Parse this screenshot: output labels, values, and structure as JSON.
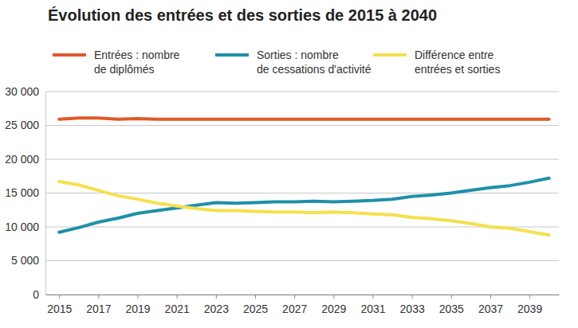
{
  "chart_data": {
    "type": "line",
    "title": "Évolution des entrées et des sorties de 2015 à 2040",
    "x": [
      2015,
      2016,
      2017,
      2018,
      2019,
      2020,
      2021,
      2022,
      2023,
      2024,
      2025,
      2026,
      2027,
      2028,
      2029,
      2030,
      2031,
      2032,
      2033,
      2034,
      2035,
      2036,
      2037,
      2038,
      2039,
      2040
    ],
    "series": [
      {
        "name": "Entrées : nombre\nde diplômés",
        "color": "#e0592a",
        "values": [
          25900,
          26100,
          26100,
          25900,
          26000,
          25900,
          25900,
          25900,
          25900,
          25900,
          25900,
          25900,
          25900,
          25900,
          25900,
          25900,
          25900,
          25900,
          25900,
          25900,
          25900,
          25900,
          25900,
          25900,
          25900,
          25900
        ]
      },
      {
        "name": "Sorties : nombre\nde cessations d'activité",
        "color": "#1f8fa8",
        "values": [
          9200,
          9900,
          10700,
          11300,
          12000,
          12400,
          12800,
          13200,
          13600,
          13500,
          13600,
          13700,
          13700,
          13800,
          13700,
          13800,
          13900,
          14100,
          14500,
          14700,
          15000,
          15400,
          15800,
          16100,
          16600,
          17200
        ]
      },
      {
        "name": "Différence entre\nentrées et sorties",
        "color": "#f5e04e",
        "values": [
          16700,
          16200,
          15400,
          14600,
          14100,
          13500,
          13100,
          12700,
          12400,
          12400,
          12300,
          12200,
          12200,
          12100,
          12200,
          12100,
          11900,
          11800,
          11400,
          11200,
          10900,
          10500,
          10000,
          9800,
          9300,
          8800
        ]
      }
    ],
    "xlim": [
      2014.3,
      2040.5
    ],
    "xticks": [
      2015,
      2017,
      2019,
      2021,
      2023,
      2025,
      2027,
      2029,
      2031,
      2033,
      2035,
      2037,
      2039
    ],
    "ylim": [
      0,
      30000
    ],
    "yticks": [
      {
        "value": 0,
        "label": "0"
      },
      {
        "value": 5000,
        "label": "5 000"
      },
      {
        "value": 10000,
        "label": "10 000"
      },
      {
        "value": 15000,
        "label": "15 000"
      },
      {
        "value": 20000,
        "label": "20 000"
      },
      {
        "value": 25000,
        "label": "25 000"
      },
      {
        "value": 30000,
        "label": "30 000"
      }
    ],
    "grid": true,
    "legend": "top"
  }
}
